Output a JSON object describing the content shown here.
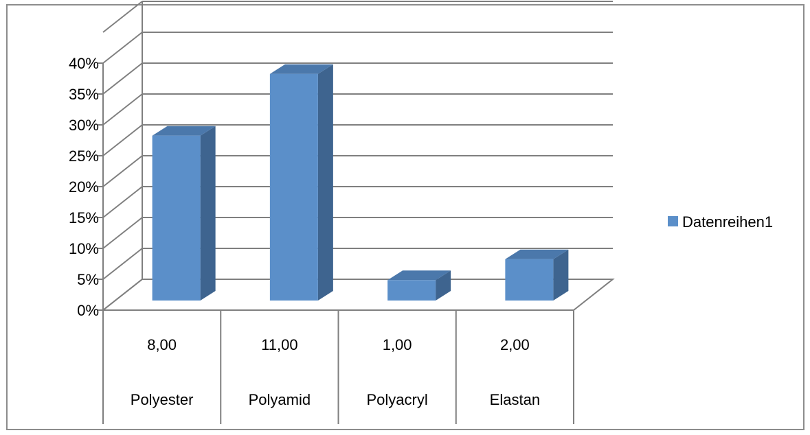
{
  "chart_data": {
    "type": "bar",
    "categories": [
      {
        "value_label": "8,00",
        "name": "Polyester"
      },
      {
        "value_label": "11,00",
        "name": "Polyamid"
      },
      {
        "value_label": "1,00",
        "name": "Polyacryl"
      },
      {
        "value_label": "2,00",
        "name": "Elastan"
      }
    ],
    "series": [
      {
        "name": "Datenreihen1",
        "values": [
          26.7,
          36.7,
          3.3,
          6.7
        ]
      }
    ],
    "y_ticks": [
      "0%",
      "5%",
      "10%",
      "15%",
      "20%",
      "25%",
      "30%",
      "35%",
      "40%"
    ],
    "ylim": [
      0,
      45
    ],
    "y_unit": "%",
    "grid": true,
    "legend_position": "right",
    "three_d": true,
    "colors": {
      "bar_front": "#5b8fc9",
      "bar_side": "#3e648f",
      "bar_top": "#4b78ab",
      "grid": "#7f7f7f",
      "axis": "#7f7f7f"
    }
  }
}
